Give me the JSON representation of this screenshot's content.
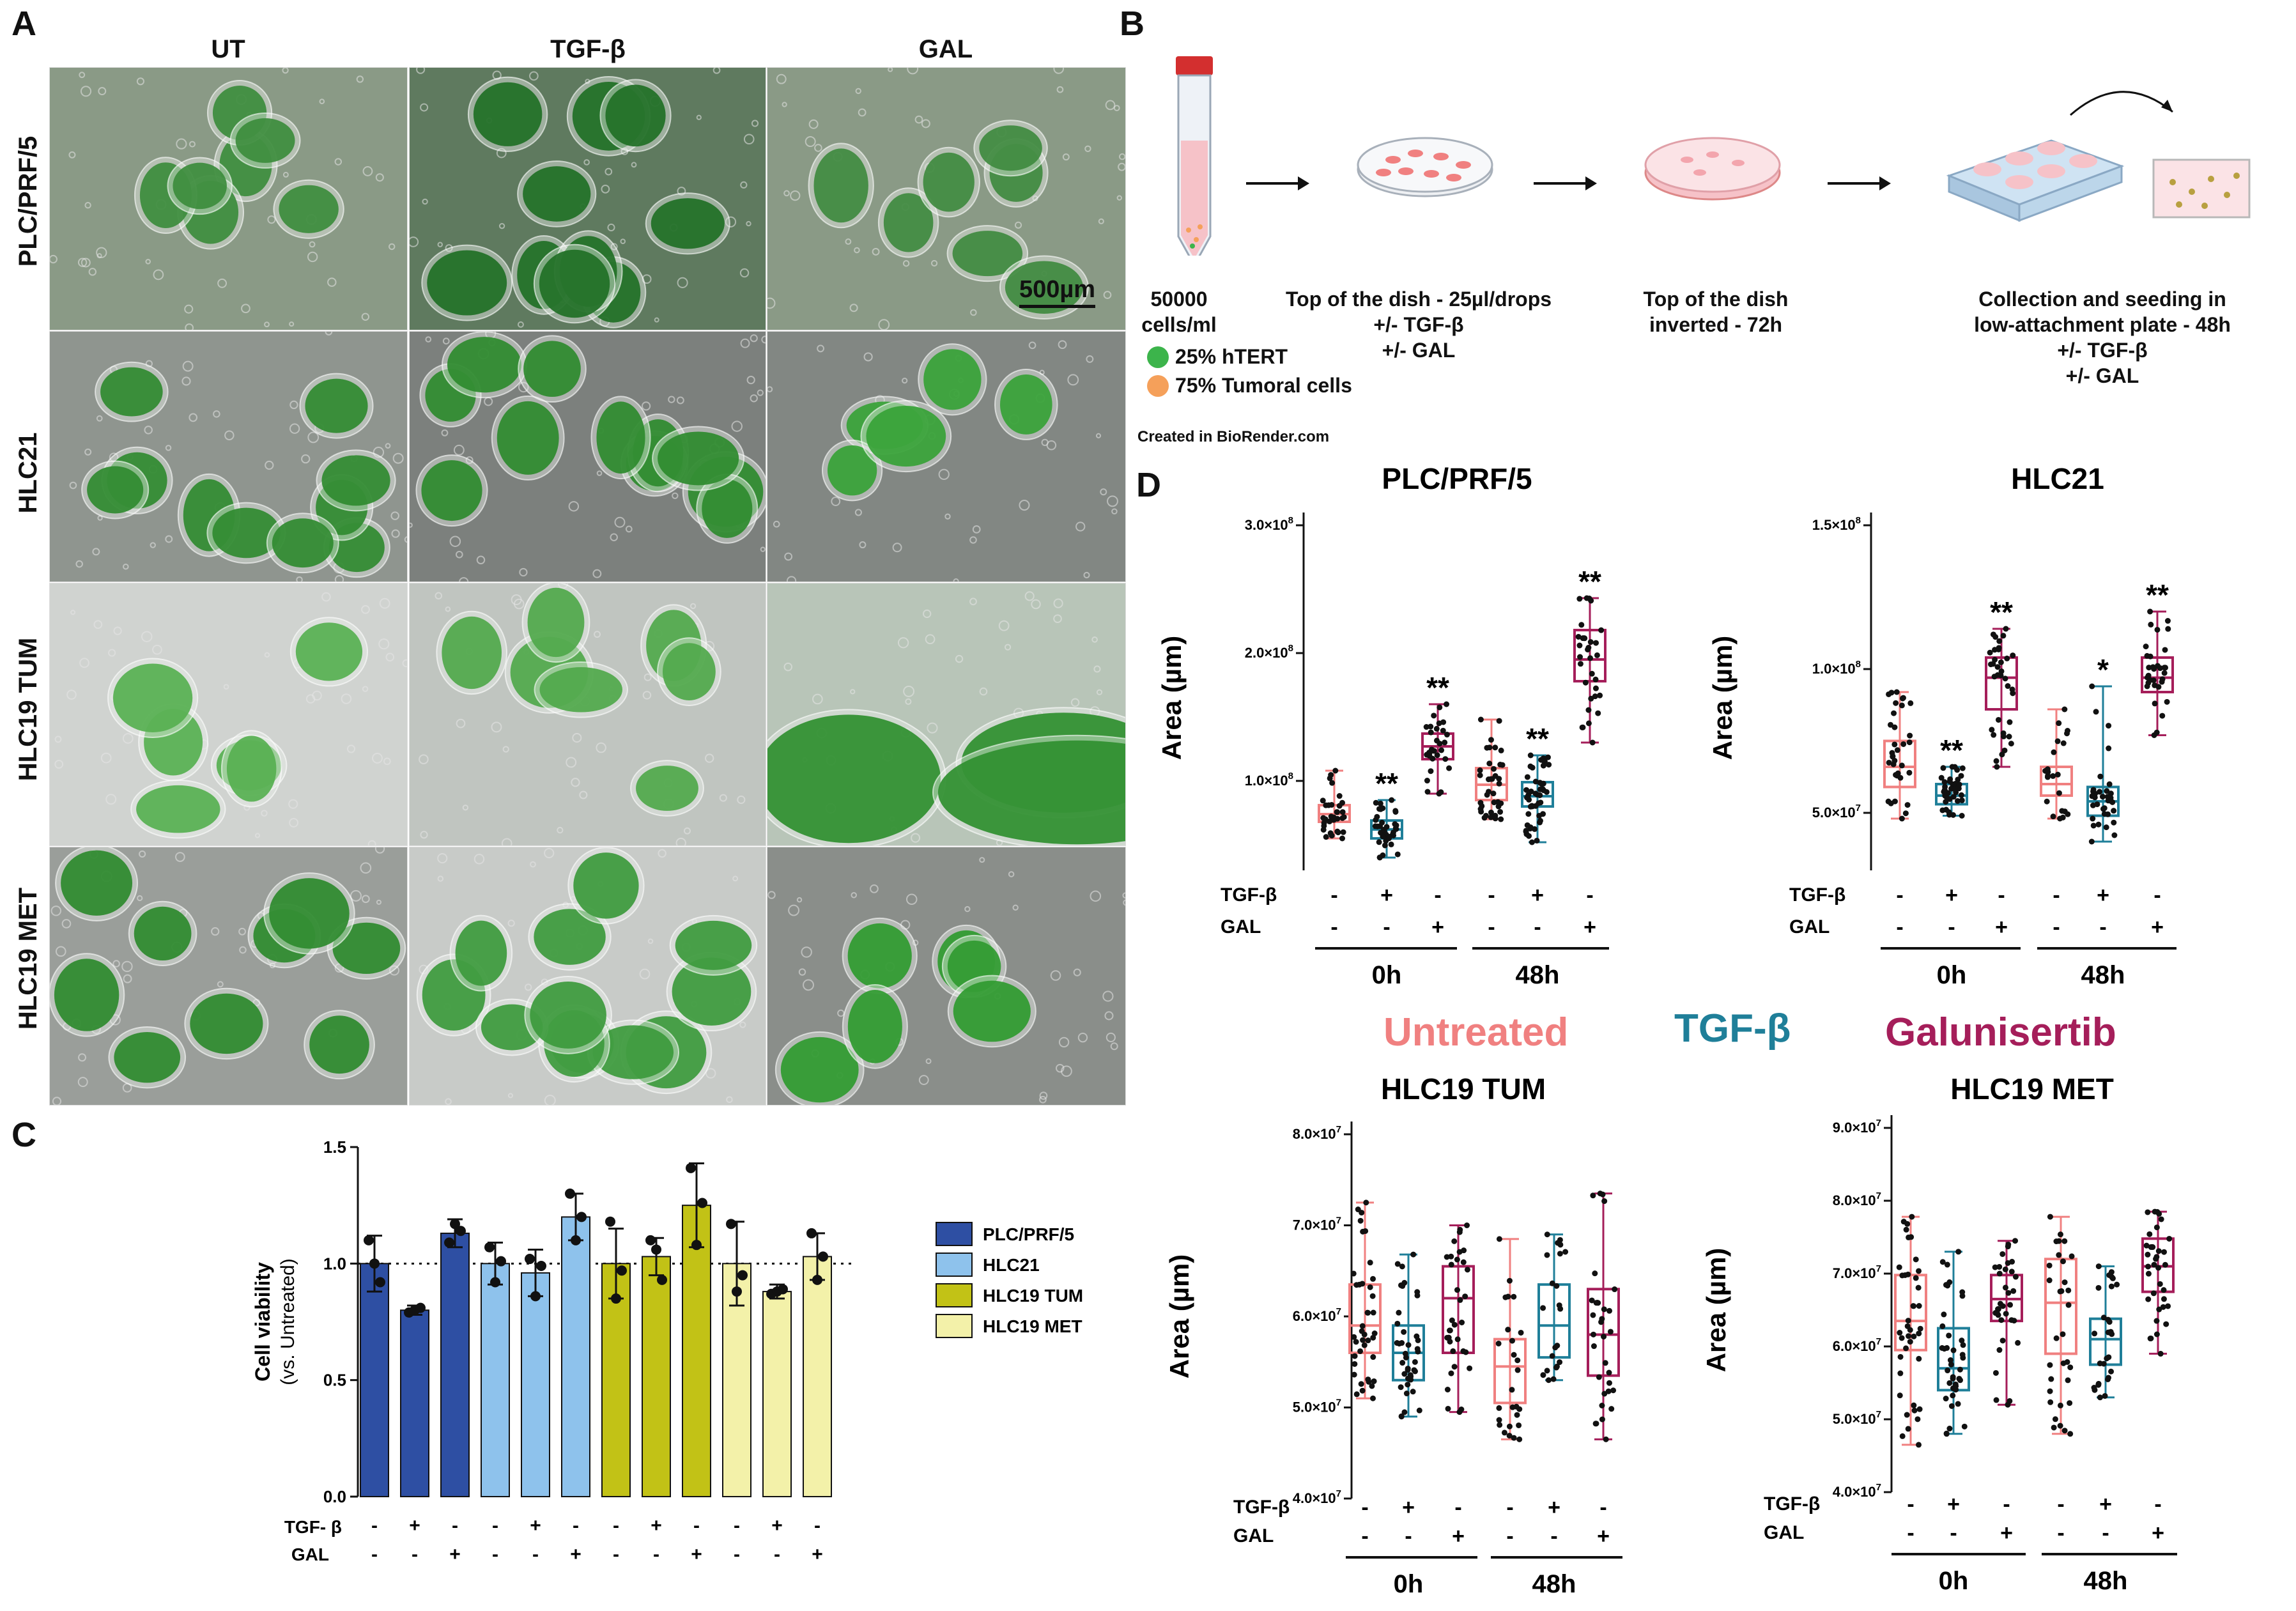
{
  "panelA": {
    "label": "A",
    "columns": [
      "UT",
      "TGF-β",
      "GAL"
    ],
    "rows": [
      "PLC/PRF/5",
      "HLC21",
      "HLC19 TUM",
      "HLC19 MET"
    ],
    "scale_bar": "500µm",
    "tiles": [
      {
        "name": "plc-ut",
        "bg": "#8a9a86",
        "spheroid": "#3c8c3c",
        "n": 7
      },
      {
        "name": "plc-tgf",
        "bg": "#5f7a5f",
        "spheroid": "#1f6f25",
        "n": 10
      },
      {
        "name": "plc-gal",
        "bg": "#8a9a86",
        "spheroid": "#3f8a3f",
        "n": 7
      },
      {
        "name": "hlc21-ut",
        "bg": "#8f958f",
        "spheroid": "#2f8a2f",
        "n": 10
      },
      {
        "name": "hlc21-tgf",
        "bg": "#7c807d",
        "spheroid": "#2c8a2c",
        "n": 11
      },
      {
        "name": "hlc21-gal",
        "bg": "#828783",
        "spheroid": "#36a236",
        "n": 5
      },
      {
        "name": "hlc19tum-ut",
        "bg": "#d0d3d0",
        "spheroid": "#56b050",
        "n": 6
      },
      {
        "name": "hlc19tum-tgf",
        "bg": "#c0c5c0",
        "spheroid": "#4fa84a",
        "n": 7
      },
      {
        "name": "hlc19tum-gal",
        "bg": "#b8c5b8",
        "spheroid": "#2f8f2f",
        "n": 3
      },
      {
        "name": "hlc19met-ut",
        "bg": "#9a9e9a",
        "spheroid": "#2c8a2c",
        "n": 9
      },
      {
        "name": "hlc19met-tgf",
        "bg": "#c8cbc8",
        "spheroid": "#3c9a3c",
        "n": 12
      },
      {
        "name": "hlc19met-gal",
        "bg": "#8a8e8a",
        "spheroid": "#2f9a2f",
        "n": 6
      }
    ]
  },
  "panelB": {
    "label": "B",
    "step1": {
      "line1": "50000",
      "line2": "cells/ml"
    },
    "step2": {
      "line1": "Top of the dish - 25µl/drops",
      "line2": "+/- TGF-β",
      "line3": "+/- GAL"
    },
    "step3": {
      "line1": "Top of the dish",
      "line2": "inverted - 72h"
    },
    "step4": {
      "line1": "Collection and seeding in",
      "line2": "low-attachment plate - 48h",
      "line3": "+/- TGF-β",
      "line4": "+/- GAL"
    },
    "legend": {
      "green": "25% hTERT",
      "orange": "75% Tumoral cells"
    },
    "credit": "Created in BioRender.com",
    "colors": {
      "green": "#3cb44b",
      "orange": "#f5a05a",
      "dish": "#f08080"
    }
  },
  "panelC": {
    "label": "C",
    "chart_data": {
      "type": "bar",
      "ylabel": "Cell viability",
      "ylabel2": "(vs. Untreated)",
      "ylim": [
        0,
        1.5
      ],
      "yticks": [
        "0.0",
        "0.5",
        "1.0",
        "1.5"
      ],
      "reference_line": 1.0,
      "treat_labels": [
        "TGF- β",
        "GAL"
      ],
      "tgf_signs": [
        "-",
        "+",
        "-",
        "-",
        "+",
        "-",
        "-",
        "+",
        "-",
        "-",
        "+",
        "-"
      ],
      "gal_signs": [
        "-",
        "-",
        "+",
        "-",
        "-",
        "+",
        "-",
        "-",
        "+",
        "-",
        "-",
        "+"
      ],
      "series": [
        {
          "name": "PLC/PRF/5",
          "color": "#2e4fa3",
          "values": [
            1.0,
            0.8,
            1.13
          ],
          "err": [
            0.12,
            0.02,
            0.06
          ],
          "points": [
            [
              1.1,
              1.0,
              0.92
            ],
            [
              0.79,
              0.8,
              0.81
            ],
            [
              1.09,
              1.17,
              1.14
            ]
          ]
        },
        {
          "name": "HLC21",
          "color": "#8ec2ec",
          "values": [
            1.0,
            0.96,
            1.2
          ],
          "err": [
            0.09,
            0.1,
            0.1
          ],
          "points": [
            [
              1.07,
              0.92,
              1.01
            ],
            [
              1.02,
              0.86,
              0.99
            ],
            [
              1.3,
              1.1,
              1.2
            ]
          ]
        },
        {
          "name": "HLC19 TUM",
          "color": "#c2c216",
          "values": [
            1.0,
            1.03,
            1.25
          ],
          "err": [
            0.15,
            0.08,
            0.18
          ],
          "points": [
            [
              1.18,
              0.85,
              0.97
            ],
            [
              1.1,
              1.06,
              0.93
            ],
            [
              1.41,
              1.08,
              1.26
            ]
          ]
        },
        {
          "name": "HLC19 MET",
          "color": "#f3f1a9",
          "values": [
            1.0,
            0.88,
            1.03
          ],
          "err": [
            0.18,
            0.03,
            0.1
          ],
          "points": [
            [
              1.17,
              0.88,
              0.95
            ],
            [
              0.87,
              0.88,
              0.89
            ],
            [
              1.13,
              0.93,
              1.03
            ]
          ]
        }
      ]
    }
  },
  "panelD": {
    "label": "D",
    "big_legend": [
      "Untreated",
      "TGF-β",
      "Galunisertib"
    ],
    "colors": {
      "untreated": "#f08080",
      "tgf": "#1f7f99",
      "gal": "#a51e5a"
    },
    "ylabel": "Area (µm)",
    "treat_labels": [
      "TGF-β",
      "GAL"
    ],
    "tgf_signs": [
      "-",
      "+",
      "-",
      "-",
      "+",
      "-"
    ],
    "gal_signs": [
      "-",
      "-",
      "+",
      "-",
      "-",
      "+"
    ],
    "time_labels": [
      "0h",
      "48h"
    ],
    "chart_data": [
      {
        "type": "box",
        "title": "PLC/PRF/5",
        "ylim": [
          30000000.0,
          300000000.0
        ],
        "yticks": [
          {
            "v": 100000000.0,
            "m": "1.0",
            "e": "8"
          },
          {
            "v": 200000000.0,
            "m": "2.0",
            "e": "8"
          },
          {
            "v": 300000000.0,
            "m": "3.0",
            "e": "8"
          }
        ],
        "boxes": [
          {
            "min": 55000000.0,
            "q1": 68000000.0,
            "med": 74000000.0,
            "q3": 81000000.0,
            "max": 108000000.0,
            "n": 34,
            "sig": ""
          },
          {
            "min": 40000000.0,
            "q1": 55000000.0,
            "med": 62000000.0,
            "q3": 69000000.0,
            "max": 85000000.0,
            "n": 40,
            "sig": "**"
          },
          {
            "min": 90000000.0,
            "q1": 117000000.0,
            "med": 127000000.0,
            "q3": 137000000.0,
            "max": 160000000.0,
            "n": 30,
            "sig": "**"
          },
          {
            "min": 70000000.0,
            "q1": 85000000.0,
            "med": 97000000.0,
            "q3": 110000000.0,
            "max": 148000000.0,
            "n": 38,
            "sig": ""
          },
          {
            "min": 52000000.0,
            "q1": 80000000.0,
            "med": 88000000.0,
            "q3": 99000000.0,
            "max": 120000000.0,
            "n": 48,
            "sig": "**"
          },
          {
            "min": 130000000.0,
            "q1": 178000000.0,
            "med": 195000000.0,
            "q3": 218000000.0,
            "max": 243000000.0,
            "n": 32,
            "sig": "**"
          }
        ]
      },
      {
        "type": "box",
        "title": "HLC21",
        "ylim": [
          30000000.0,
          150000000.0
        ],
        "yticks": [
          {
            "v": 50000000.0,
            "m": "5.0",
            "e": "7"
          },
          {
            "v": 100000000.0,
            "m": "1.0",
            "e": "8"
          },
          {
            "v": 150000000.0,
            "m": "1.5",
            "e": "8"
          }
        ],
        "boxes": [
          {
            "min": 48000000.0,
            "q1": 59000000.0,
            "med": 66000000.0,
            "q3": 75000000.0,
            "max": 92000000.0,
            "n": 34,
            "sig": ""
          },
          {
            "min": 49000000.0,
            "q1": 53000000.0,
            "med": 56000000.0,
            "q3": 60000000.0,
            "max": 66000000.0,
            "n": 38,
            "sig": "**"
          },
          {
            "min": 66000000.0,
            "q1": 86000000.0,
            "med": 97000000.0,
            "q3": 104000000.0,
            "max": 114000000.0,
            "n": 36,
            "sig": "**"
          },
          {
            "min": 48000000.0,
            "q1": 56000000.0,
            "med": 60000000.0,
            "q3": 66000000.0,
            "max": 86000000.0,
            "n": 22,
            "sig": ""
          },
          {
            "min": 40000000.0,
            "q1": 49000000.0,
            "med": 54000000.0,
            "q3": 59000000.0,
            "max": 94000000.0,
            "n": 36,
            "sig": "*"
          },
          {
            "min": 77000000.0,
            "q1": 92000000.0,
            "med": 97000000.0,
            "q3": 104000000.0,
            "max": 120000000.0,
            "n": 32,
            "sig": "**"
          }
        ]
      },
      {
        "type": "box",
        "title": "HLC19 TUM",
        "ylim": [
          40000000.0,
          80000000.0
        ],
        "yticks": [
          {
            "v": 40000000.0,
            "m": "4.0",
            "e": "7"
          },
          {
            "v": 50000000.0,
            "m": "5.0",
            "e": "7"
          },
          {
            "v": 60000000.0,
            "m": "6.0",
            "e": "7"
          },
          {
            "v": 70000000.0,
            "m": "7.0",
            "e": "7"
          },
          {
            "v": 80000000.0,
            "m": "8.0",
            "e": "7"
          }
        ],
        "boxes": [
          {
            "min": 51000000.0,
            "q1": 56000000.0,
            "med": 59000000.0,
            "q3": 63500000.0,
            "max": 72500000.0,
            "n": 40,
            "sig": ""
          },
          {
            "min": 49000000.0,
            "q1": 53000000.0,
            "med": 56000000.0,
            "q3": 59000000.0,
            "max": 66800000.0,
            "n": 40,
            "sig": ""
          },
          {
            "min": 49500000.0,
            "q1": 56000000.0,
            "med": 62000000.0,
            "q3": 65500000.0,
            "max": 70000000.0,
            "n": 34,
            "sig": ""
          },
          {
            "min": 46500000.0,
            "q1": 50500000.0,
            "med": 54500000.0,
            "q3": 57500000.0,
            "max": 68500000.0,
            "n": 26,
            "sig": ""
          },
          {
            "min": 53000000.0,
            "q1": 55500000.0,
            "med": 59000000.0,
            "q3": 63500000.0,
            "max": 69000000.0,
            "n": 22,
            "sig": ""
          },
          {
            "min": 46500000.0,
            "q1": 53500000.0,
            "med": 58000000.0,
            "q3": 63000000.0,
            "max": 73500000.0,
            "n": 32,
            "sig": ""
          }
        ]
      },
      {
        "type": "box",
        "title": "HLC19 MET",
        "ylim": [
          40000000.0,
          90000000.0
        ],
        "yticks": [
          {
            "v": 40000000.0,
            "m": "4.0",
            "e": "7"
          },
          {
            "v": 50000000.0,
            "m": "5.0",
            "e": "7"
          },
          {
            "v": 60000000.0,
            "m": "6.0",
            "e": "7"
          },
          {
            "v": 70000000.0,
            "m": "7.0",
            "e": "7"
          },
          {
            "v": 80000000.0,
            "m": "8.0",
            "e": "7"
          },
          {
            "v": 90000000.0,
            "m": "9.0",
            "e": "7"
          }
        ],
        "boxes": [
          {
            "min": 46500000.0,
            "q1": 59500000.0,
            "med": 63500000.0,
            "q3": 69800000.0,
            "max": 77800000.0,
            "n": 40,
            "sig": ""
          },
          {
            "min": 48000000.0,
            "q1": 54000000.0,
            "med": 57000000.0,
            "q3": 62500000.0,
            "max": 73000000.0,
            "n": 40,
            "sig": ""
          },
          {
            "min": 52000000.0,
            "q1": 63500000.0,
            "med": 66500000.0,
            "q3": 69800000.0,
            "max": 74500000.0,
            "n": 34,
            "sig": ""
          },
          {
            "min": 48000000.0,
            "q1": 59000000.0,
            "med": 66000000.0,
            "q3": 72000000.0,
            "max": 77800000.0,
            "n": 32,
            "sig": ""
          },
          {
            "min": 53000000.0,
            "q1": 57500000.0,
            "med": 61000000.0,
            "q3": 63800000.0,
            "max": 71000000.0,
            "n": 28,
            "sig": ""
          },
          {
            "min": 59000000.0,
            "q1": 67500000.0,
            "med": 71000000.0,
            "q3": 74800000.0,
            "max": 78500000.0,
            "n": 36,
            "sig": ""
          }
        ]
      }
    ]
  }
}
